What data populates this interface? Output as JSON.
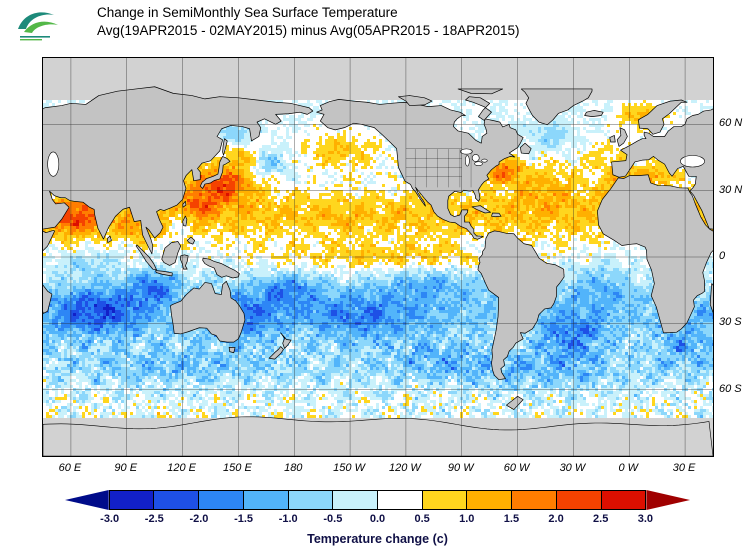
{
  "header": {
    "logo_name": "noaa-logo",
    "title_line1": "Change in SemiMonthly Sea Surface Temperature",
    "title_line2": "Avg(19APR2015 - 02MAY2015) minus Avg(05APR2015 - 18APR2015)"
  },
  "map": {
    "lat_ticks": [
      {
        "label": "60 N",
        "lat": 60
      },
      {
        "label": "30 N",
        "lat": 30
      },
      {
        "label": "0",
        "lat": 0
      },
      {
        "label": "30 S",
        "lat": -30
      },
      {
        "label": "60 S",
        "lat": -60
      }
    ],
    "lon_ticks": [
      {
        "label": "60 E",
        "lon": 60
      },
      {
        "label": "90 E",
        "lon": 90
      },
      {
        "label": "120 E",
        "lon": 120
      },
      {
        "label": "150 E",
        "lon": 150
      },
      {
        "label": "180",
        "lon": 180
      },
      {
        "label": "150 W",
        "lon": 210
      },
      {
        "label": "120 W",
        "lon": 240
      },
      {
        "label": "90 W",
        "lon": 270
      },
      {
        "label": "60 W",
        "lon": 300
      },
      {
        "label": "30 W",
        "lon": 330
      },
      {
        "label": "0 W",
        "lon": 360
      },
      {
        "label": "30 E",
        "lon": 390
      }
    ],
    "land_color": "#c3c3c3",
    "ice_color": "#d2d2d2",
    "ocean_color": "#ffffff",
    "grid_color": "#3c3c3c",
    "border_color": "#000000"
  },
  "colorbar": {
    "label": "Temperature change  (c)",
    "ticks": [
      "-3.0",
      "-2.5",
      "-2.0",
      "-1.5",
      "-1.0",
      "-0.5",
      "0.0",
      "0.5",
      "1.0",
      "1.5",
      "2.0",
      "2.5",
      "3.0"
    ],
    "colors": [
      "#000c8a",
      "#1220c8",
      "#1e50e6",
      "#2d86f5",
      "#52b4fa",
      "#8cd7fb",
      "#c9f1fb",
      "#ffffff",
      "#ffd61e",
      "#ffb000",
      "#ff7d00",
      "#f54200",
      "#dc0f00",
      "#a00000"
    ],
    "units": "c",
    "min": -3.0,
    "max": 3.0,
    "step": 0.5
  }
}
